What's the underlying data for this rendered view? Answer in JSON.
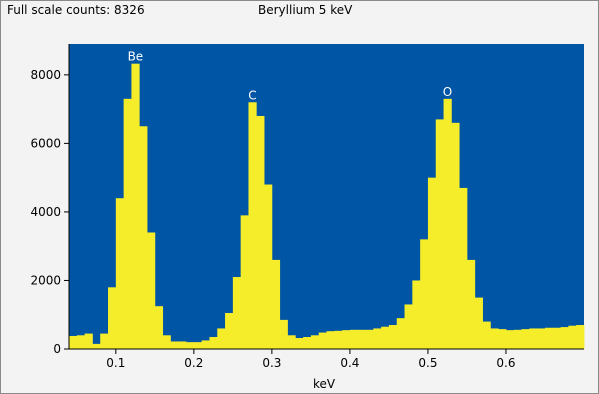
{
  "header": {
    "full_scale": "Full scale counts: 8326",
    "title": "Beryllium 5 keV"
  },
  "colors": {
    "plot_background": "#0055a5",
    "spectrum_fill": "#f5ec2a",
    "frame_background": "#f3f3f3"
  },
  "chart_data": {
    "type": "bar",
    "title": "Beryllium 5 keV",
    "xlabel": "keV",
    "ylabel": "",
    "xlim": [
      0.04,
      0.7
    ],
    "ylim": [
      0,
      8900
    ],
    "bin_width": 0.01,
    "x": [
      0.04,
      0.05,
      0.06,
      0.07,
      0.08,
      0.09,
      0.1,
      0.11,
      0.12,
      0.13,
      0.14,
      0.15,
      0.16,
      0.17,
      0.18,
      0.19,
      0.2,
      0.21,
      0.22,
      0.23,
      0.24,
      0.25,
      0.26,
      0.27,
      0.28,
      0.29,
      0.3,
      0.31,
      0.32,
      0.33,
      0.34,
      0.35,
      0.36,
      0.37,
      0.38,
      0.39,
      0.4,
      0.41,
      0.42,
      0.43,
      0.44,
      0.45,
      0.46,
      0.47,
      0.48,
      0.49,
      0.5,
      0.51,
      0.52,
      0.53,
      0.54,
      0.55,
      0.56,
      0.57,
      0.58,
      0.59,
      0.6,
      0.61,
      0.62,
      0.63,
      0.64,
      0.65,
      0.66,
      0.67,
      0.68,
      0.69
    ],
    "values": [
      380,
      400,
      450,
      150,
      450,
      1800,
      4400,
      7300,
      8326,
      6500,
      3400,
      1250,
      400,
      220,
      220,
      200,
      200,
      250,
      350,
      600,
      1050,
      2100,
      3900,
      7200,
      6800,
      4800,
      2600,
      850,
      400,
      320,
      350,
      400,
      480,
      520,
      530,
      550,
      560,
      560,
      560,
      600,
      650,
      700,
      900,
      1300,
      2000,
      3200,
      5000,
      6700,
      7300,
      6600,
      4700,
      2600,
      1500,
      800,
      600,
      580,
      550,
      560,
      580,
      600,
      600,
      620,
      620,
      640,
      680,
      700
    ],
    "yticks": [
      0,
      2000,
      4000,
      6000,
      8000
    ],
    "xticks": [
      0.1,
      0.2,
      0.3,
      0.4,
      0.5,
      0.6
    ],
    "annotations": [
      {
        "text": "Be",
        "x": 0.12,
        "y": 8326
      },
      {
        "text": "C",
        "x": 0.27,
        "y": 7200
      },
      {
        "text": "O",
        "x": 0.52,
        "y": 7300
      }
    ],
    "grid": false,
    "legend": "none"
  }
}
